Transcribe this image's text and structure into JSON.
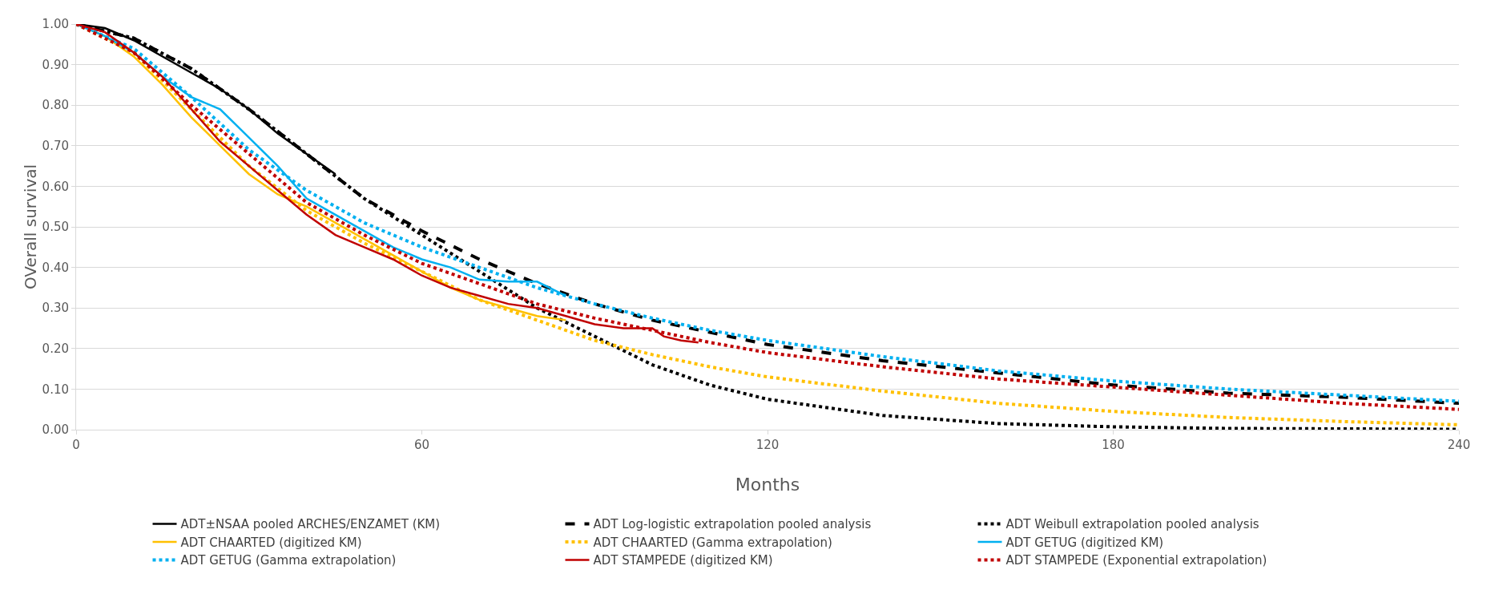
{
  "chart_data": {
    "type": "line",
    "xlabel": "Months",
    "ylabel": "OVerall survival",
    "xlim": [
      0,
      240
    ],
    "xticks": [
      0,
      60,
      120,
      180,
      240
    ],
    "ylim": [
      0,
      1
    ],
    "yticks": [
      {
        "value": 0,
        "label": "0.00"
      },
      {
        "value": 0.1,
        "label": "0.10"
      },
      {
        "value": 0.2,
        "label": "0.20"
      },
      {
        "value": 0.3,
        "label": "0.30"
      },
      {
        "value": 0.4,
        "label": "0.40"
      },
      {
        "value": 0.5,
        "label": "0.50"
      },
      {
        "value": 0.6,
        "label": "0.60"
      },
      {
        "value": 0.7,
        "label": "0.70"
      },
      {
        "value": 0.8,
        "label": "0.80"
      },
      {
        "value": 0.9,
        "label": "0.90"
      },
      {
        "value": 1,
        "label": "1.00"
      }
    ],
    "grid": "y",
    "legend": "bottom",
    "marker": "none",
    "series": [
      {
        "name": "ADT±NSAA pooled ARCHES/ENZAMET (KM)",
        "color": "#000000",
        "line_style": "solid",
        "x": [
          0,
          5,
          10,
          15,
          20,
          25,
          30,
          35,
          40,
          45
        ],
        "values": [
          1,
          0.99,
          0.96,
          0.92,
          0.88,
          0.84,
          0.79,
          0.73,
          0.68,
          0.63
        ]
      },
      {
        "name": "ADT Log-logistic extrapolation pooled analysis",
        "color": "#000000",
        "line_style": "dashed",
        "x": [
          0,
          10,
          20,
          30,
          40,
          50,
          60,
          70,
          80,
          90,
          100,
          110,
          120,
          140,
          160,
          180,
          200,
          220,
          240
        ],
        "values": [
          1,
          0.965,
          0.89,
          0.79,
          0.68,
          0.57,
          0.49,
          0.42,
          0.36,
          0.31,
          0.27,
          0.24,
          0.21,
          0.17,
          0.14,
          0.11,
          0.09,
          0.08,
          0.065
        ]
      },
      {
        "name": "ADT Weibull extrapolation pooled analysis",
        "color": "#000000",
        "line_style": "dotted",
        "x": [
          0,
          10,
          20,
          30,
          40,
          50,
          60,
          70,
          80,
          90,
          100,
          110,
          120,
          140,
          160,
          180,
          200,
          220,
          240
        ],
        "values": [
          1,
          0.965,
          0.89,
          0.79,
          0.68,
          0.57,
          0.48,
          0.39,
          0.3,
          0.23,
          0.16,
          0.11,
          0.075,
          0.035,
          0.015,
          0.007,
          0.003,
          0.002,
          0.001
        ]
      },
      {
        "name": "ADT CHAARTED (digitized KM)",
        "color": "#ffc000",
        "line_style": "solid",
        "x": [
          0,
          5,
          10,
          15,
          20,
          25,
          30,
          35,
          40,
          45,
          50,
          55,
          60,
          65,
          70,
          75,
          80,
          85
        ],
        "values": [
          1,
          0.97,
          0.92,
          0.85,
          0.77,
          0.7,
          0.63,
          0.58,
          0.55,
          0.51,
          0.47,
          0.43,
          0.39,
          0.35,
          0.32,
          0.3,
          0.28,
          0.27
        ]
      },
      {
        "name": "ADT CHAARTED (Gamma extrapolation)",
        "color": "#ffc000",
        "line_style": "dotted",
        "x": [
          0,
          10,
          20,
          30,
          40,
          50,
          60,
          70,
          80,
          90,
          100,
          110,
          120,
          140,
          160,
          180,
          200,
          220,
          240
        ],
        "values": [
          1,
          0.93,
          0.79,
          0.65,
          0.54,
          0.46,
          0.39,
          0.32,
          0.27,
          0.22,
          0.185,
          0.155,
          0.13,
          0.095,
          0.065,
          0.045,
          0.03,
          0.02,
          0.012
        ]
      },
      {
        "name": "ADT GETUG (digitized KM)",
        "color": "#00b0f0",
        "line_style": "solid",
        "x": [
          0,
          5,
          10,
          15,
          20,
          25,
          30,
          35,
          40,
          45,
          50,
          55,
          60,
          65,
          70,
          75,
          80,
          85
        ],
        "values": [
          1,
          0.97,
          0.93,
          0.87,
          0.82,
          0.79,
          0.72,
          0.65,
          0.57,
          0.53,
          0.49,
          0.45,
          0.42,
          0.4,
          0.37,
          0.365,
          0.365,
          0.33
        ]
      },
      {
        "name": "ADT GETUG (Gamma extrapolation)",
        "color": "#00b0f0",
        "line_style": "dotted",
        "x": [
          0,
          10,
          20,
          30,
          40,
          50,
          60,
          70,
          80,
          90,
          100,
          110,
          120,
          140,
          160,
          180,
          200,
          220,
          240
        ],
        "values": [
          1,
          0.94,
          0.82,
          0.69,
          0.59,
          0.51,
          0.45,
          0.4,
          0.35,
          0.31,
          0.275,
          0.245,
          0.22,
          0.18,
          0.145,
          0.12,
          0.1,
          0.085,
          0.07
        ]
      },
      {
        "name": "ADT STAMPEDE (digitized KM)",
        "color": "#c00000",
        "line_style": "solid",
        "x": [
          0,
          5,
          10,
          15,
          20,
          25,
          30,
          35,
          40,
          45,
          50,
          55,
          60,
          65,
          70,
          75,
          80,
          85,
          90,
          95,
          100,
          102,
          105,
          108
        ],
        "values": [
          1,
          0.98,
          0.93,
          0.87,
          0.79,
          0.71,
          0.65,
          0.59,
          0.53,
          0.48,
          0.45,
          0.42,
          0.38,
          0.35,
          0.33,
          0.31,
          0.3,
          0.28,
          0.26,
          0.25,
          0.25,
          0.23,
          0.22,
          0.215
        ]
      },
      {
        "name": "ADT STAMPEDE (Exponential extrapolation)",
        "color": "#c00000",
        "line_style": "dotted",
        "x": [
          0,
          10,
          20,
          30,
          40,
          50,
          60,
          70,
          80,
          90,
          100,
          110,
          120,
          140,
          160,
          180,
          200,
          220,
          240
        ],
        "values": [
          1,
          0.93,
          0.8,
          0.68,
          0.56,
          0.48,
          0.41,
          0.36,
          0.31,
          0.275,
          0.245,
          0.215,
          0.19,
          0.155,
          0.125,
          0.105,
          0.085,
          0.065,
          0.05
        ]
      }
    ]
  }
}
